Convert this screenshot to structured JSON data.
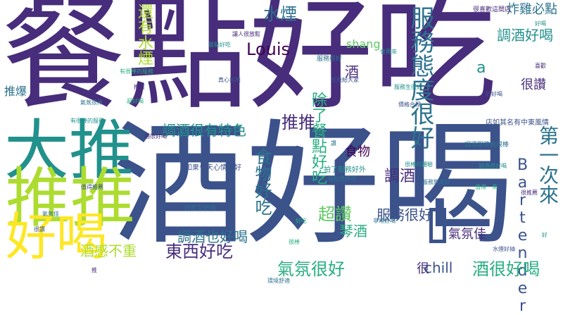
{
  "colors": {
    "background": "#ffffff",
    "palette": [
      "#440154",
      "#472d7b",
      "#3b528b",
      "#2c728e",
      "#21918c",
      "#28ae80",
      "#5ec962",
      "#addc30",
      "#fde725"
    ]
  },
  "words": [
    {
      "id": "w-canbu",
      "text": "餐點好吃",
      "color": "#472d7b",
      "vertical": false
    },
    {
      "id": "w-jiuhao",
      "text": "酒好喝",
      "color": "#3b528b",
      "vertical": false
    },
    {
      "id": "w-datui",
      "text": "大推",
      "color": "#21918c",
      "vertical": false
    },
    {
      "id": "w-tuitui",
      "text": "推推",
      "color": "#addc30",
      "vertical": false
    },
    {
      "id": "w-haohe",
      "text": "好喝",
      "color": "#fde725",
      "vertical": false
    },
    {
      "id": "w-box",
      "text": "",
      "color": "#3b528b",
      "vertical": false
    },
    {
      "id": "w-fuwutaidu",
      "text": "服務態度很好",
      "color": "#2c728e",
      "vertical": true
    },
    {
      "id": "w-tiaojiu1",
      "text": "調酒好喝",
      "color": "#21918c",
      "vertical": false
    },
    {
      "id": "w-haiyoushuiyan",
      "text": "還有水煙",
      "color": "#addc30",
      "vertical": true
    },
    {
      "id": "w-shuiyan",
      "text": "水煙",
      "color": "#2c728e",
      "vertical": false
    },
    {
      "id": "w-zhaji",
      "text": "炸雞必點",
      "color": "#2c728e",
      "vertical": false
    },
    {
      "id": "w-louis",
      "text": "Louis",
      "color": "#440154",
      "vertical": false
    },
    {
      "id": "w-shang",
      "text": "shang",
      "color": "#5ec962",
      "vertical": false
    },
    {
      "id": "w-a",
      "text": "a",
      "color": "#21918c",
      "vertical": false
    },
    {
      "id": "w-jiu",
      "text": "酒",
      "color": "#472d7b",
      "vertical": false
    },
    {
      "id": "w-henzan",
      "text": "很讚",
      "color": "#472d7b",
      "vertical": false
    },
    {
      "id": "w-tiaojiuteshe",
      "text": "調酒很有特色",
      "color": "#21918c",
      "vertical": false
    },
    {
      "id": "w-tuitui2",
      "text": "推推",
      "color": "#472d7b",
      "vertical": false
    },
    {
      "id": "w-dijici",
      "text": "第一次來",
      "color": "#2c728e",
      "vertical": true
    },
    {
      "id": "w-chulecanbu",
      "text": "除了餐點好吃",
      "color": "#28ae80",
      "vertical": true
    },
    {
      "id": "w-shiwu",
      "text": "食物",
      "color": "#440154",
      "vertical": false
    },
    {
      "id": "w-tiaojiu2",
      "text": "調酒",
      "color": "#472d7b",
      "vertical": false
    },
    {
      "id": "w-shiwuhaochi",
      "text": "食物好吃",
      "color": "#2c728e",
      "vertical": true
    },
    {
      "id": "w-bartender",
      "text": "Bartender",
      "color": "#3b528b",
      "vertical": true
    },
    {
      "id": "w-fuwuhenhao",
      "text": "服務很好",
      "color": "#3b528b",
      "vertical": false
    },
    {
      "id": "w-chaozan",
      "text": "超讚",
      "color": "#5ec962",
      "vertical": false
    },
    {
      "id": "w-qinjiu",
      "text": "琴酒",
      "color": "#28ae80",
      "vertical": false
    },
    {
      "id": "w-tiaojiuyehao",
      "text": "調酒也好喝",
      "color": "#2c728e",
      "vertical": false
    },
    {
      "id": "w-dongxi",
      "text": "東西好吃",
      "color": "#472d7b",
      "vertical": false
    },
    {
      "id": "w-qifen",
      "text": "氣氛很好",
      "color": "#28ae80",
      "vertical": false
    },
    {
      "id": "w-jiuganbuzhong",
      "text": "酒感不重",
      "color": "#addc30",
      "vertical": false
    },
    {
      "id": "w-qifenjia",
      "text": "氣氛佳",
      "color": "#472d7b",
      "vertical": false
    },
    {
      "id": "w-jiuhenhao",
      "text": "酒很好喝",
      "color": "#28ae80",
      "vertical": false
    },
    {
      "id": "w-hen",
      "text": "很",
      "color": "#472d7b",
      "vertical": false
    },
    {
      "id": "w-chill",
      "text": "chill",
      "color": "#3b528b",
      "vertical": false
    },
    {
      "id": "w-tuibao",
      "text": "推爆",
      "color": "#2c728e",
      "vertical": false
    },
    {
      "id": "w-s1",
      "text": "拍了服務好外",
      "color": "#21918c",
      "vertical": false
    },
    {
      "id": "w-s2",
      "text": "店如其名有中東風情",
      "color": "#3b528b",
      "vertical": false
    },
    {
      "id": "w-s3",
      "text": "調酒服務都很棒",
      "color": "#2c728e",
      "vertical": false
    },
    {
      "id": "w-s4",
      "text": "如果今天心情不好",
      "color": "#3b528b",
      "vertical": false
    },
    {
      "id": "w-s5",
      "text": "服務很好",
      "color": "#2c728e",
      "vertical": false
    },
    {
      "id": "w-s6",
      "text": "有很棒的服務",
      "color": "#21918c",
      "vertical": false
    },
    {
      "id": "w-s7",
      "text": "好吃又好喝",
      "color": "#2c728e",
      "vertical": false
    },
    {
      "id": "w-s8",
      "text": "很喜歡這間店",
      "color": "#472d7b",
      "vertical": false
    },
    {
      "id": "w-s9",
      "text": "有很棒的服務",
      "color": "#28ae80",
      "vertical": false
    },
    {
      "id": "w-s10",
      "text": "真心推薦",
      "color": "#3b528b",
      "vertical": false
    },
    {
      "id": "w-s11",
      "text": "餐點很好吃",
      "color": "#2c728e",
      "vertical": false
    },
    {
      "id": "w-s12",
      "text": "服務生很好",
      "color": "#21918c",
      "vertical": false
    },
    {
      "id": "w-s13",
      "text": "非常好喝",
      "color": "#2c728e",
      "vertical": false
    },
    {
      "id": "w-s14",
      "text": "好好喝",
      "color": "#3b528b",
      "vertical": false
    },
    {
      "id": "w-s15",
      "text": "讓人很放鬆",
      "color": "#472d7b",
      "vertical": false
    },
    {
      "id": "w-s16",
      "text": "會再來",
      "color": "#21918c",
      "vertical": false
    },
    {
      "id": "w-s17",
      "text": "氣氛很棒",
      "color": "#2c728e",
      "vertical": false
    },
    {
      "id": "w-s18",
      "text": "推薦給大家",
      "color": "#3b528b",
      "vertical": false
    },
    {
      "id": "w-s19",
      "text": "值得一來",
      "color": "#28ae80",
      "vertical": false
    },
    {
      "id": "w-s20",
      "text": "調酒很好喝",
      "color": "#21918c",
      "vertical": false
    },
    {
      "id": "w-s21",
      "text": "很推薦",
      "color": "#472d7b",
      "vertical": false
    },
    {
      "id": "w-s22",
      "text": "環境舒適",
      "color": "#2c728e",
      "vertical": false
    },
    {
      "id": "w-s23",
      "text": "價格合理",
      "color": "#3b528b",
      "vertical": false
    },
    {
      "id": "w-s24",
      "text": "很棒的體驗",
      "color": "#21918c",
      "vertical": false
    },
    {
      "id": "w-s25",
      "text": "好吃",
      "color": "#28ae80",
      "vertical": false
    },
    {
      "id": "w-s26",
      "text": "推",
      "color": "#472d7b",
      "vertical": false
    },
    {
      "id": "w-s27",
      "text": "水煙好抽",
      "color": "#3b528b",
      "vertical": false
    },
    {
      "id": "w-s28",
      "text": "服務態度好",
      "color": "#2c728e",
      "vertical": false
    },
    {
      "id": "w-s29",
      "text": "餐點好吃",
      "color": "#21918c",
      "vertical": false
    },
    {
      "id": "w-s30",
      "text": "酒很好喝",
      "color": "#472d7b",
      "vertical": false
    },
    {
      "id": "w-s31",
      "text": "很棒",
      "color": "#28ae80",
      "vertical": false
    },
    {
      "id": "w-s32",
      "text": "值得推薦",
      "color": "#3b528b",
      "vertical": false
    },
    {
      "id": "w-s33",
      "text": "氣氛佳",
      "color": "#2c728e",
      "vertical": false
    },
    {
      "id": "w-s34",
      "text": "好喝",
      "color": "#21918c",
      "vertical": false
    },
    {
      "id": "w-s35",
      "text": "推推",
      "color": "#472d7b",
      "vertical": false
    },
    {
      "id": "w-s36",
      "text": "很讚",
      "color": "#3b528b",
      "vertical": false
    },
    {
      "id": "w-s37",
      "text": "超好喝",
      "color": "#28ae80",
      "vertical": false
    },
    {
      "id": "w-s38",
      "text": "讚",
      "color": "#2c728e",
      "vertical": false
    },
    {
      "id": "w-s39",
      "text": "好",
      "color": "#21918c",
      "vertical": false
    },
    {
      "id": "w-s40",
      "text": "喜歡",
      "color": "#472d7b",
      "vertical": false
    }
  ]
}
